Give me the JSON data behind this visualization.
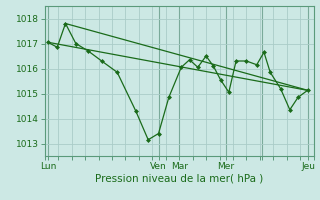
{
  "bg_color": "#cce8e4",
  "grid_color": "#aaccc8",
  "line_color": "#1a6b1a",
  "tick_label_color": "#1a6b1a",
  "xlabel": "Pression niveau de la mer( hPa )",
  "ylim": [
    1012.5,
    1018.5
  ],
  "yticks": [
    1013,
    1014,
    1015,
    1016,
    1017,
    1018
  ],
  "xlim": [
    0,
    260
  ],
  "xtick_positions": [
    3,
    110,
    130,
    175,
    210,
    255
  ],
  "xtick_labels": [
    "Lun",
    "Ven",
    "Mar",
    "Mer",
    "",
    "Jeu"
  ],
  "vline_positions": [
    3,
    110,
    130,
    175,
    210,
    255
  ],
  "trend1_x": [
    3,
    255
  ],
  "trend1_y": [
    1017.05,
    1015.12
  ],
  "trend2_x": [
    20,
    255
  ],
  "trend2_y": [
    1017.8,
    1015.12
  ],
  "jagged_x": [
    3,
    12,
    20,
    30,
    42,
    55,
    70,
    88,
    100,
    110,
    120,
    132,
    140,
    148,
    156,
    163,
    170,
    178,
    185,
    195,
    205,
    212,
    218,
    228,
    237,
    245,
    255
  ],
  "jagged_y": [
    1017.05,
    1016.85,
    1017.8,
    1017.0,
    1016.7,
    1016.3,
    1015.85,
    1014.3,
    1013.15,
    1013.4,
    1014.85,
    1016.05,
    1016.35,
    1016.05,
    1016.5,
    1016.1,
    1015.55,
    1015.05,
    1016.3,
    1016.3,
    1016.15,
    1016.65,
    1015.85,
    1015.2,
    1014.35,
    1014.85,
    1015.15
  ]
}
